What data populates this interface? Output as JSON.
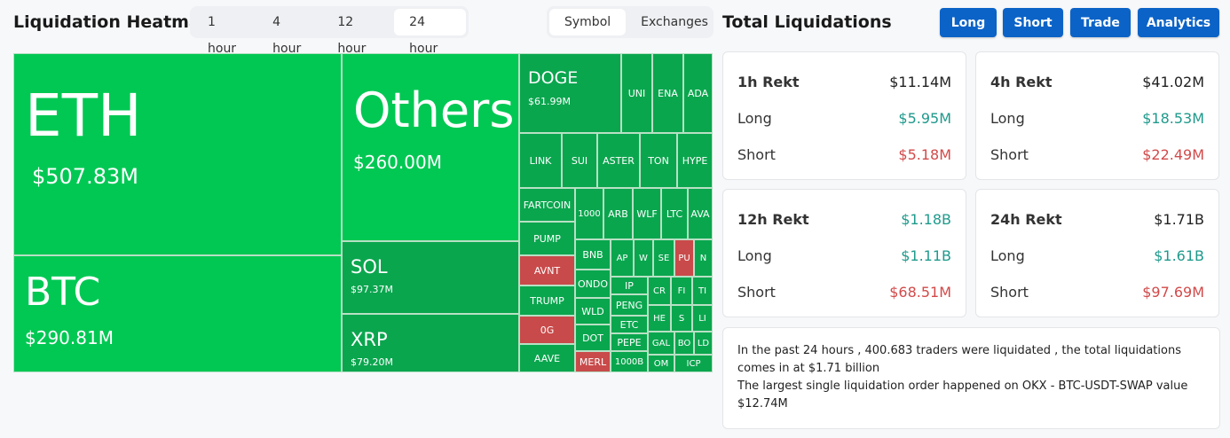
{
  "heatmap": {
    "title": "Liquidation Heatmap",
    "timeframes": [
      "1 hour",
      "4 hour",
      "12 hour",
      "24 hour"
    ],
    "active_timeframe": "24 hour",
    "group_by": [
      "Symbol",
      "Exchanges"
    ],
    "active_group": "Symbol",
    "tiles": [
      {
        "symbol": "ETH",
        "value": "$507.83M",
        "side": "long"
      },
      {
        "symbol": "BTC",
        "value": "$290.81M",
        "side": "long"
      },
      {
        "symbol": "Others",
        "value": "$260.00M",
        "side": "long"
      },
      {
        "symbol": "SOL",
        "value": "$97.37M",
        "side": "long"
      },
      {
        "symbol": "XRP",
        "value": "$79.20M",
        "side": "long"
      },
      {
        "symbol": "DOGE",
        "value": "$61.99M",
        "side": "long"
      },
      {
        "symbol": "UNI",
        "side": "long"
      },
      {
        "symbol": "ENA",
        "side": "long"
      },
      {
        "symbol": "ADA",
        "side": "long"
      },
      {
        "symbol": "LINK",
        "side": "long"
      },
      {
        "symbol": "SUI",
        "side": "long"
      },
      {
        "symbol": "ASTER",
        "side": "long"
      },
      {
        "symbol": "TON",
        "side": "long"
      },
      {
        "symbol": "HYPE",
        "side": "long"
      },
      {
        "symbol": "FARTCOIN",
        "side": "long"
      },
      {
        "symbol": "1000",
        "side": "long"
      },
      {
        "symbol": "ARB",
        "side": "long"
      },
      {
        "symbol": "WLF",
        "side": "long"
      },
      {
        "symbol": "LTC",
        "side": "long"
      },
      {
        "symbol": "AVA",
        "side": "long"
      },
      {
        "symbol": "PUMP",
        "side": "long"
      },
      {
        "symbol": "AVNT",
        "side": "short"
      },
      {
        "symbol": "TRUMP",
        "side": "long"
      },
      {
        "symbol": "0G",
        "side": "short"
      },
      {
        "symbol": "AAVE",
        "side": "long"
      },
      {
        "symbol": "BNB",
        "side": "long"
      },
      {
        "symbol": "ONDO",
        "side": "long"
      },
      {
        "symbol": "WLD",
        "side": "long"
      },
      {
        "symbol": "DOT",
        "side": "long"
      },
      {
        "symbol": "MERL",
        "side": "short"
      },
      {
        "symbol": "AP",
        "side": "long"
      },
      {
        "symbol": "W",
        "side": "long"
      },
      {
        "symbol": "SE",
        "side": "long"
      },
      {
        "symbol": "PU",
        "side": "short"
      },
      {
        "symbol": "N",
        "side": "long"
      },
      {
        "symbol": "IP",
        "side": "long"
      },
      {
        "symbol": "PENG",
        "side": "long"
      },
      {
        "symbol": "ETC",
        "side": "long"
      },
      {
        "symbol": "PEPE",
        "side": "long"
      },
      {
        "symbol": "1000B",
        "side": "long"
      },
      {
        "symbol": "CR",
        "side": "long"
      },
      {
        "symbol": "FI",
        "side": "long"
      },
      {
        "symbol": "TI",
        "side": "long"
      },
      {
        "symbol": "HE",
        "side": "long"
      },
      {
        "symbol": "S",
        "side": "long"
      },
      {
        "symbol": "LI",
        "side": "long"
      },
      {
        "symbol": "GAL",
        "side": "long"
      },
      {
        "symbol": "BO",
        "side": "long"
      },
      {
        "symbol": "LD",
        "side": "long"
      },
      {
        "symbol": "OM",
        "side": "long"
      },
      {
        "symbol": "ICP",
        "side": "long"
      }
    ]
  },
  "totals": {
    "title": "Total Liquidations",
    "buttons": [
      "Long",
      "Short",
      "Trade",
      "Analytics"
    ],
    "cards": [
      {
        "label": "1h Rekt",
        "total": "$11.14M",
        "long_label": "Long",
        "long": "$5.95M",
        "short_label": "Short",
        "short": "$5.18M"
      },
      {
        "label": "4h Rekt",
        "total": "$41.02M",
        "long_label": "Long",
        "long": "$18.53M",
        "short_label": "Short",
        "short": "$22.49M"
      },
      {
        "label": "12h Rekt",
        "total": "$1.18B",
        "long_label": "Long",
        "long": "$1.11B",
        "short_label": "Short",
        "short": "$68.51M"
      },
      {
        "label": "24h Rekt",
        "total": "$1.71B",
        "long_label": "Long",
        "long": "$1.61B",
        "short_label": "Short",
        "short": "$97.69M"
      }
    ],
    "summary_line1": "In the past 24 hours , 400.683 traders were liquidated , the total liquidations comes in at $1.71 billion",
    "summary_line2": "The largest single liquidation order happened on OKX - BTC-USDT-SWAP value $12.74M"
  },
  "colors": {
    "tile_bright": "#00c853",
    "tile_mid": "#0aa64e",
    "tile_dark": "#0d9a4a",
    "tile_short": "#c94a4a",
    "button_blue": "#0b63c7",
    "long_text": "#1f9a8c",
    "short_text": "#d24a4a"
  }
}
